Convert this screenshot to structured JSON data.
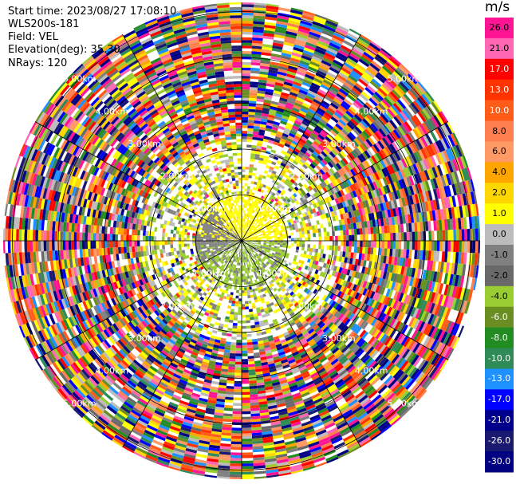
{
  "header": {
    "start_time": "Start time: 2023/08/27 17:08:10",
    "instrument": "WLS200s-181",
    "field": "Field: VEL",
    "elevation": "Elevation(deg): 35.30",
    "nrays": "NRays: 120"
  },
  "colorbar": {
    "title": "m/s",
    "labels": [
      "26.0",
      "21.0",
      "17.0",
      "13.0",
      "10.0",
      "8.0",
      "6.0",
      "4.0",
      "2.0",
      "1.0",
      "0.0",
      "-1.0",
      "-2.0",
      "-4.0",
      "-6.0",
      "-8.0",
      "-10.0",
      "-13.0",
      "-17.0",
      "-21.0",
      "-26.0",
      "-30.0"
    ],
    "colors": [
      "#ff1493",
      "#ff66b3",
      "#ff0000",
      "#ff3300",
      "#ff5c1a",
      "#ff7f50",
      "#ff9966",
      "#ffa500",
      "#ffd700",
      "#ffff00",
      "#bcbcbc",
      "#808080",
      "#696969",
      "#9acd32",
      "#6b8e23",
      "#228b22",
      "#2e8b57",
      "#1e90ff",
      "#0000ff",
      "#00008b",
      "#191970",
      "#000080"
    ]
  },
  "chart_data": {
    "type": "heatmap",
    "subtype": "polar PPI scan",
    "field": "VEL",
    "units": "m/s",
    "nrays": 120,
    "range_rings_km": [
      1.0,
      2.0,
      3.0,
      4.0,
      5.0
    ],
    "range_ring_labels": [
      "1.00km",
      "2.00km",
      "3.00km",
      "4.00km",
      "5.00km"
    ],
    "max_range_km": 5.2,
    "color_scale_range": [
      -30.0,
      26.0
    ],
    "inner_region_dominant_values_ms": [
      2.0,
      0.0,
      -2.0
    ],
    "outer_region": "noisy values spanning full color scale"
  }
}
